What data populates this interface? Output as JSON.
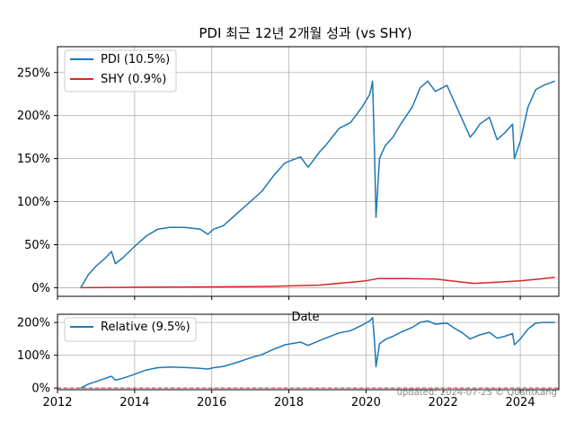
{
  "chart_data": [
    {
      "type": "line",
      "title": "PDI 최근 12년 2개월 성과 (vs SHY)",
      "xlabel": "Date",
      "ylabel": "",
      "x_range": [
        2012.0,
        2025.0
      ],
      "ylim": [
        -10,
        280
      ],
      "y_unit": "%",
      "x_tick_labels": [
        "2012",
        "2014",
        "2016",
        "2018",
        "2020",
        "2022",
        "2024"
      ],
      "y_tick_labels": [
        "0%",
        "50%",
        "100%",
        "150%",
        "200%",
        "250%"
      ],
      "grid": true,
      "legend_position": "top-left",
      "series": [
        {
          "name": "PDI (10.5%)",
          "color": "#1f77b4",
          "x": [
            2012.6,
            2012.8,
            2013.0,
            2013.25,
            2013.4,
            2013.5,
            2013.7,
            2014.0,
            2014.3,
            2014.6,
            2014.9,
            2015.3,
            2015.7,
            2015.9,
            2016.05,
            2016.3,
            2016.7,
            2017.0,
            2017.3,
            2017.6,
            2017.9,
            2018.3,
            2018.5,
            2018.8,
            2018.95,
            2019.3,
            2019.6,
            2019.9,
            2020.1,
            2020.17,
            2020.22,
            2020.26,
            2020.35,
            2020.5,
            2020.7,
            2020.9,
            2021.2,
            2021.4,
            2021.6,
            2021.8,
            2022.1,
            2022.3,
            2022.5,
            2022.7,
            2022.8,
            2022.95,
            2023.2,
            2023.4,
            2023.6,
            2023.8,
            2023.85,
            2024.0,
            2024.2,
            2024.4,
            2024.6,
            2024.9
          ],
          "values": [
            0,
            15,
            25,
            35,
            42,
            28,
            35,
            48,
            60,
            68,
            70,
            70,
            68,
            62,
            68,
            72,
            88,
            100,
            112,
            130,
            145,
            152,
            140,
            158,
            165,
            185,
            192,
            210,
            225,
            240,
            160,
            82,
            150,
            165,
            175,
            190,
            210,
            232,
            240,
            228,
            235,
            215,
            195,
            175,
            180,
            190,
            198,
            172,
            180,
            190,
            150,
            170,
            210,
            230,
            235,
            240
          ]
        },
        {
          "name": "SHY (0.9%)",
          "color": "#d62728",
          "x": [
            2012.6,
            2014.0,
            2016.0,
            2017.5,
            2018.8,
            2019.5,
            2020.0,
            2020.3,
            2021.0,
            2021.8,
            2022.0,
            2022.4,
            2022.8,
            2023.2,
            2023.6,
            2024.0,
            2024.5,
            2024.9
          ],
          "values": [
            0,
            0.5,
            1,
            1.5,
            3,
            6,
            8,
            10.5,
            10.5,
            10,
            9,
            7,
            5,
            6,
            7,
            8,
            10,
            12
          ]
        }
      ]
    },
    {
      "type": "line",
      "title": "",
      "xlabel": "",
      "ylabel": "",
      "x_range": [
        2012.0,
        2025.0
      ],
      "ylim": [
        -5,
        225
      ],
      "y_unit": "%",
      "x_tick_labels": [
        "2012",
        "2014",
        "2016",
        "2018",
        "2020",
        "2022",
        "2024"
      ],
      "y_tick_labels": [
        "0%",
        "100%",
        "200%"
      ],
      "grid": true,
      "legend_position": "top-left",
      "reference_line": {
        "y": 0,
        "style": "dashed",
        "color": "#d62728"
      },
      "series": [
        {
          "name": "Relative (9.5%)",
          "color": "#1f77b4",
          "x": [
            2012.6,
            2012.8,
            2013.0,
            2013.25,
            2013.4,
            2013.5,
            2013.7,
            2014.0,
            2014.3,
            2014.6,
            2014.9,
            2015.3,
            2015.7,
            2015.9,
            2016.05,
            2016.3,
            2016.7,
            2017.0,
            2017.3,
            2017.6,
            2017.9,
            2018.3,
            2018.5,
            2018.8,
            2018.95,
            2019.3,
            2019.6,
            2019.9,
            2020.1,
            2020.17,
            2020.22,
            2020.26,
            2020.35,
            2020.5,
            2020.7,
            2020.9,
            2021.2,
            2021.4,
            2021.6,
            2021.8,
            2022.1,
            2022.3,
            2022.5,
            2022.7,
            2022.8,
            2022.95,
            2023.2,
            2023.4,
            2023.6,
            2023.8,
            2023.85,
            2024.0,
            2024.2,
            2024.4,
            2024.6,
            2024.9
          ],
          "values": [
            0,
            12,
            20,
            30,
            36,
            24,
            30,
            42,
            55,
            62,
            64,
            63,
            60,
            58,
            62,
            66,
            80,
            92,
            102,
            118,
            132,
            140,
            130,
            145,
            152,
            168,
            175,
            192,
            205,
            215,
            145,
            65,
            135,
            148,
            158,
            170,
            185,
            200,
            205,
            195,
            198,
            182,
            168,
            150,
            155,
            162,
            170,
            152,
            158,
            166,
            132,
            150,
            180,
            198,
            200,
            200
          ]
        }
      ]
    }
  ],
  "footer": {
    "text": "updated: 2024-07-25 © QuantKang"
  }
}
